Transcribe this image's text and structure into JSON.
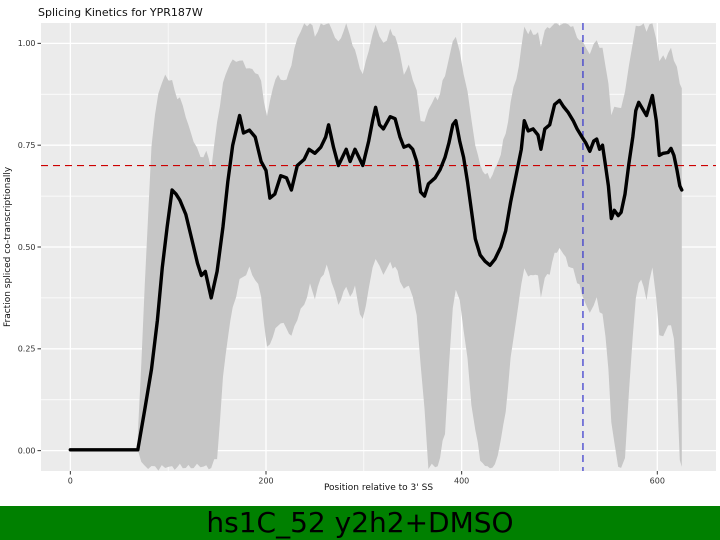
{
  "chart_data": {
    "type": "line",
    "title": "Splicing Kinetics for YPR187W",
    "xlabel": "Position relative to 3' SS",
    "ylabel": "Fraction spliced co-transcriptionally",
    "xlim": [
      -30,
      660
    ],
    "ylim": [
      -0.05,
      1.05
    ],
    "x_ticks": [
      0,
      200,
      400,
      600
    ],
    "x_tick_labels": [
      "0",
      "200",
      "400",
      "600"
    ],
    "x_minor": [
      100,
      300,
      500
    ],
    "y_ticks": [
      0.0,
      0.25,
      0.5,
      0.75,
      1.0
    ],
    "y_tick_labels": [
      "0.00",
      "0.25",
      "0.50",
      "0.75",
      "1.00"
    ],
    "y_minor": [
      0.125,
      0.375,
      0.625,
      0.875
    ],
    "panel_bg": "#EBEBEB",
    "grid_color": "#FFFFFF",
    "tick_color": "#333333",
    "hline": {
      "y": 0.7,
      "color": "#CC0000",
      "dash": "7 5",
      "width": 1.2
    },
    "vline": {
      "x": 524,
      "color": "#3333CC",
      "dash": "7 5",
      "width": 1.2
    },
    "ribbon": {
      "color": "#C6C6C6",
      "points": [
        [
          69,
          0.03,
          0.0
        ],
        [
          76,
          0.4,
          -0.04
        ],
        [
          83,
          0.75,
          -0.04
        ],
        [
          90,
          0.88,
          -0.04
        ],
        [
          97,
          0.92,
          -0.04
        ],
        [
          104,
          0.9,
          -0.04
        ],
        [
          112,
          0.86,
          -0.04
        ],
        [
          118,
          0.82,
          -0.04
        ],
        [
          126,
          0.76,
          -0.04
        ],
        [
          133,
          0.72,
          -0.04
        ],
        [
          139,
          0.73,
          -0.04
        ],
        [
          144,
          0.7,
          -0.04
        ],
        [
          150,
          0.8,
          -0.02
        ],
        [
          156,
          0.9,
          0.18
        ],
        [
          161,
          0.94,
          0.28
        ],
        [
          166,
          0.96,
          0.35
        ],
        [
          173,
          0.96,
          0.42
        ],
        [
          183,
          0.94,
          0.45
        ],
        [
          189,
          0.93,
          0.42
        ],
        [
          195,
          0.9,
          0.38
        ],
        [
          201,
          0.82,
          0.25
        ],
        [
          207,
          0.9,
          0.28
        ],
        [
          215,
          0.92,
          0.32
        ],
        [
          221,
          0.91,
          0.3
        ],
        [
          226,
          0.95,
          0.28
        ],
        [
          232,
          1.02,
          0.33
        ],
        [
          239,
          1.05,
          0.36
        ],
        [
          245,
          1.05,
          0.4
        ],
        [
          250,
          1.02,
          0.38
        ],
        [
          256,
          1.05,
          0.42
        ],
        [
          262,
          1.05,
          0.45
        ],
        [
          267,
          1.04,
          0.42
        ],
        [
          274,
          1.0,
          0.36
        ],
        [
          282,
          1.05,
          0.4
        ],
        [
          286,
          1.02,
          0.38
        ],
        [
          291,
          0.98,
          0.4
        ],
        [
          296,
          0.94,
          0.34
        ],
        [
          299,
          0.92,
          0.32
        ],
        [
          305,
          0.99,
          0.4
        ],
        [
          309,
          1.02,
          0.45
        ],
        [
          312,
          1.05,
          0.48
        ],
        [
          316,
          1.02,
          0.45
        ],
        [
          320,
          1.0,
          0.44
        ],
        [
          327,
          1.03,
          0.46
        ],
        [
          332,
          1.02,
          0.45
        ],
        [
          337,
          0.97,
          0.42
        ],
        [
          341,
          0.93,
          0.4
        ],
        [
          346,
          0.94,
          0.4
        ],
        [
          350,
          0.92,
          0.38
        ],
        [
          354,
          0.88,
          0.33
        ],
        [
          358,
          0.82,
          0.22
        ],
        [
          362,
          0.8,
          0.1
        ],
        [
          366,
          0.84,
          -0.04
        ],
        [
          373,
          0.86,
          -0.04
        ],
        [
          378,
          0.88,
          -0.02
        ],
        [
          383,
          0.92,
          0.05
        ],
        [
          387,
          0.96,
          0.2
        ],
        [
          391,
          1.0,
          0.35
        ],
        [
          394,
          1.02,
          0.4
        ],
        [
          398,
          0.97,
          0.36
        ],
        [
          402,
          0.93,
          0.3
        ],
        [
          406,
          0.88,
          0.22
        ],
        [
          410,
          0.82,
          0.12
        ],
        [
          414,
          0.75,
          0.05
        ],
        [
          419,
          0.7,
          -0.02
        ],
        [
          424,
          0.68,
          -0.04
        ],
        [
          429,
          0.67,
          -0.04
        ],
        [
          434,
          0.69,
          -0.04
        ],
        [
          440,
          0.73,
          0.02
        ],
        [
          445,
          0.78,
          0.1
        ],
        [
          450,
          0.85,
          0.22
        ],
        [
          456,
          0.92,
          0.33
        ],
        [
          461,
          0.98,
          0.4
        ],
        [
          464,
          1.04,
          0.45
        ],
        [
          468,
          1.02,
          0.42
        ],
        [
          473,
          1.03,
          0.44
        ],
        [
          478,
          1.02,
          0.42
        ],
        [
          481,
          0.99,
          0.38
        ],
        [
          485,
          1.03,
          0.42
        ],
        [
          490,
          1.04,
          0.44
        ],
        [
          495,
          1.05,
          0.48
        ],
        [
          500,
          1.05,
          0.5
        ],
        [
          504,
          1.05,
          0.48
        ],
        [
          509,
          1.05,
          0.46
        ],
        [
          514,
          1.04,
          0.44
        ],
        [
          518,
          1.02,
          0.42
        ],
        [
          523,
          1.0,
          0.38
        ],
        [
          527,
          0.99,
          0.36
        ],
        [
          531,
          0.97,
          0.33
        ],
        [
          535,
          1.0,
          0.36
        ],
        [
          538,
          1.01,
          0.37
        ],
        [
          541,
          0.98,
          0.33
        ],
        [
          544,
          0.99,
          0.34
        ],
        [
          547,
          0.95,
          0.28
        ],
        [
          550,
          0.9,
          0.2
        ],
        [
          553,
          0.83,
          0.08
        ],
        [
          556,
          0.85,
          0.02
        ],
        [
          560,
          0.84,
          -0.04
        ],
        [
          563,
          0.85,
          -0.04
        ],
        [
          567,
          0.88,
          -0.02
        ],
        [
          571,
          0.95,
          0.15
        ],
        [
          575,
          1.0,
          0.28
        ],
        [
          578,
          1.04,
          0.38
        ],
        [
          581,
          1.05,
          0.42
        ],
        [
          586,
          1.04,
          0.4
        ],
        [
          589,
          1.03,
          0.38
        ],
        [
          592,
          1.05,
          0.42
        ],
        [
          595,
          1.05,
          0.45
        ],
        [
          599,
          1.02,
          0.38
        ],
        [
          602,
          0.96,
          0.28
        ],
        [
          606,
          0.97,
          0.29
        ],
        [
          611,
          0.97,
          0.3
        ],
        [
          614,
          0.98,
          0.31
        ],
        [
          617,
          0.96,
          0.28
        ],
        [
          620,
          0.94,
          0.15
        ],
        [
          623,
          0.9,
          -0.02
        ],
        [
          625,
          0.89,
          -0.04
        ]
      ]
    },
    "series": [
      {
        "name": "fraction-spliced",
        "color": "#000000",
        "width": 3.4,
        "points": [
          [
            0,
            0.002
          ],
          [
            30,
            0.002
          ],
          [
            69,
            0.002
          ],
          [
            76,
            0.1
          ],
          [
            83,
            0.2
          ],
          [
            89,
            0.32
          ],
          [
            94,
            0.45
          ],
          [
            99,
            0.55
          ],
          [
            104,
            0.64
          ],
          [
            108,
            0.63
          ],
          [
            112,
            0.615
          ],
          [
            118,
            0.58
          ],
          [
            124,
            0.52
          ],
          [
            130,
            0.46
          ],
          [
            134,
            0.43
          ],
          [
            138,
            0.44
          ],
          [
            144,
            0.375
          ],
          [
            150,
            0.44
          ],
          [
            156,
            0.55
          ],
          [
            161,
            0.66
          ],
          [
            166,
            0.75
          ],
          [
            173,
            0.823
          ],
          [
            177,
            0.78
          ],
          [
            183,
            0.787
          ],
          [
            189,
            0.77
          ],
          [
            195,
            0.71
          ],
          [
            200,
            0.688
          ],
          [
            204,
            0.62
          ],
          [
            209,
            0.63
          ],
          [
            215,
            0.675
          ],
          [
            221,
            0.67
          ],
          [
            226,
            0.64
          ],
          [
            232,
            0.7
          ],
          [
            239,
            0.715
          ],
          [
            244,
            0.74
          ],
          [
            250,
            0.73
          ],
          [
            256,
            0.745
          ],
          [
            261,
            0.77
          ],
          [
            264,
            0.8
          ],
          [
            269,
            0.745
          ],
          [
            274,
            0.7
          ],
          [
            282,
            0.74
          ],
          [
            286,
            0.71
          ],
          [
            291,
            0.74
          ],
          [
            296,
            0.715
          ],
          [
            299,
            0.7
          ],
          [
            305,
            0.76
          ],
          [
            309,
            0.81
          ],
          [
            312,
            0.843
          ],
          [
            316,
            0.8
          ],
          [
            320,
            0.79
          ],
          [
            327,
            0.82
          ],
          [
            332,
            0.815
          ],
          [
            337,
            0.77
          ],
          [
            341,
            0.745
          ],
          [
            346,
            0.75
          ],
          [
            350,
            0.74
          ],
          [
            354,
            0.71
          ],
          [
            358,
            0.635
          ],
          [
            362,
            0.625
          ],
          [
            366,
            0.655
          ],
          [
            373,
            0.67
          ],
          [
            378,
            0.69
          ],
          [
            383,
            0.72
          ],
          [
            387,
            0.755
          ],
          [
            391,
            0.8
          ],
          [
            394,
            0.81
          ],
          [
            398,
            0.76
          ],
          [
            402,
            0.72
          ],
          [
            406,
            0.66
          ],
          [
            410,
            0.59
          ],
          [
            414,
            0.52
          ],
          [
            419,
            0.48
          ],
          [
            424,
            0.465
          ],
          [
            429,
            0.455
          ],
          [
            434,
            0.47
          ],
          [
            440,
            0.5
          ],
          [
            445,
            0.54
          ],
          [
            450,
            0.61
          ],
          [
            456,
            0.68
          ],
          [
            461,
            0.74
          ],
          [
            464,
            0.81
          ],
          [
            468,
            0.785
          ],
          [
            473,
            0.79
          ],
          [
            478,
            0.775
          ],
          [
            481,
            0.74
          ],
          [
            485,
            0.79
          ],
          [
            490,
            0.8
          ],
          [
            495,
            0.85
          ],
          [
            500,
            0.86
          ],
          [
            504,
            0.845
          ],
          [
            509,
            0.83
          ],
          [
            514,
            0.81
          ],
          [
            518,
            0.79
          ],
          [
            523,
            0.77
          ],
          [
            527,
            0.755
          ],
          [
            531,
            0.735
          ],
          [
            535,
            0.76
          ],
          [
            538,
            0.765
          ],
          [
            541,
            0.74
          ],
          [
            544,
            0.75
          ],
          [
            547,
            0.7
          ],
          [
            550,
            0.65
          ],
          [
            553,
            0.57
          ],
          [
            556,
            0.59
          ],
          [
            560,
            0.577
          ],
          [
            563,
            0.585
          ],
          [
            567,
            0.63
          ],
          [
            571,
            0.705
          ],
          [
            575,
            0.77
          ],
          [
            578,
            0.835
          ],
          [
            581,
            0.855
          ],
          [
            586,
            0.835
          ],
          [
            589,
            0.823
          ],
          [
            592,
            0.848
          ],
          [
            595,
            0.872
          ],
          [
            599,
            0.81
          ],
          [
            602,
            0.725
          ],
          [
            606,
            0.73
          ],
          [
            611,
            0.732
          ],
          [
            614,
            0.742
          ],
          [
            617,
            0.725
          ],
          [
            620,
            0.69
          ],
          [
            623,
            0.65
          ],
          [
            625,
            0.64
          ]
        ]
      }
    ]
  },
  "banner": {
    "text": "hs1C_52 y2h2+DMSO",
    "bg": "#008000",
    "fg": "#000000"
  }
}
